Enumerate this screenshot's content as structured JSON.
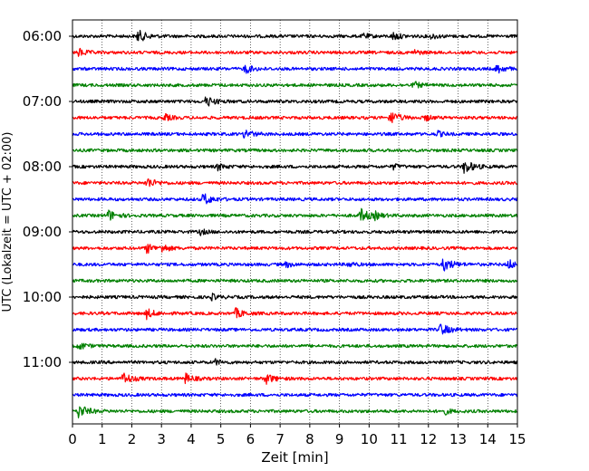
{
  "chart_data": {
    "type": "line",
    "title": "",
    "xlabel": "Zeit  [min]",
    "ylabel": "UTC (Lokalzeit = UTC + 02:00)",
    "xlim": [
      0,
      15
    ],
    "x_ticks": [
      "0",
      "1",
      "2",
      "3",
      "4",
      "5",
      "6",
      "7",
      "8",
      "9",
      "10",
      "11",
      "12",
      "13",
      "14",
      "15"
    ],
    "y_ticks": [
      "06:00",
      "07:00",
      "08:00",
      "09:00",
      "10:00",
      "11:00"
    ],
    "y_tick_trace_index": [
      0,
      4,
      8,
      12,
      16,
      20
    ],
    "trace_interval_minutes": 15,
    "grid": "vertical dotted",
    "colors": [
      "#000000",
      "#ff0000",
      "#0000ff",
      "#008000"
    ],
    "traces": [
      {
        "start": "06:00",
        "color": "#000000",
        "bursts": [
          [
            2.2,
            0.9
          ],
          [
            9.8,
            0.4
          ],
          [
            10.8,
            0.6
          ],
          [
            12.1,
            0.4
          ]
        ]
      },
      {
        "start": "06:15",
        "color": "#ff0000",
        "bursts": [
          [
            0.2,
            0.6
          ],
          [
            11.5,
            0.4
          ]
        ]
      },
      {
        "start": "06:30",
        "color": "#0000ff",
        "bursts": [
          [
            5.8,
            0.7
          ],
          [
            14.3,
            0.7
          ]
        ]
      },
      {
        "start": "06:45",
        "color": "#008000",
        "bursts": [
          [
            11.5,
            0.5
          ]
        ]
      },
      {
        "start": "07:00",
        "color": "#000000",
        "bursts": [
          [
            4.5,
            0.8
          ]
        ]
      },
      {
        "start": "07:15",
        "color": "#ff0000",
        "bursts": [
          [
            3.1,
            0.5
          ],
          [
            10.7,
            1.0
          ],
          [
            11.9,
            0.4
          ]
        ]
      },
      {
        "start": "07:30",
        "color": "#0000ff",
        "bursts": [
          [
            5.8,
            0.7
          ],
          [
            12.3,
            0.4
          ]
        ]
      },
      {
        "start": "07:45",
        "color": "#008000",
        "bursts": []
      },
      {
        "start": "08:00",
        "color": "#000000",
        "bursts": [
          [
            4.9,
            0.5
          ],
          [
            10.8,
            0.4
          ],
          [
            13.2,
            1.0
          ]
        ]
      },
      {
        "start": "08:15",
        "color": "#ff0000",
        "bursts": [
          [
            2.5,
            0.8
          ]
        ]
      },
      {
        "start": "08:30",
        "color": "#0000ff",
        "bursts": [
          [
            4.4,
            0.9
          ]
        ]
      },
      {
        "start": "08:45",
        "color": "#008000",
        "bursts": [
          [
            1.2,
            0.8
          ],
          [
            9.7,
            1.0
          ],
          [
            10.2,
            0.4
          ]
        ]
      },
      {
        "start": "09:00",
        "color": "#000000",
        "bursts": [
          [
            4.3,
            0.4
          ]
        ]
      },
      {
        "start": "09:15",
        "color": "#ff0000",
        "bursts": [
          [
            2.5,
            0.7
          ],
          [
            3.0,
            0.6
          ]
        ]
      },
      {
        "start": "09:30",
        "color": "#0000ff",
        "bursts": [
          [
            7.2,
            0.4
          ],
          [
            9.3,
            0.4
          ],
          [
            12.5,
            1.0
          ],
          [
            14.7,
            0.7
          ]
        ]
      },
      {
        "start": "09:45",
        "color": "#008000",
        "bursts": []
      },
      {
        "start": "10:00",
        "color": "#000000",
        "bursts": [
          [
            4.7,
            0.4
          ]
        ]
      },
      {
        "start": "10:15",
        "color": "#ff0000",
        "bursts": [
          [
            2.5,
            0.7
          ],
          [
            5.5,
            0.7
          ]
        ]
      },
      {
        "start": "10:30",
        "color": "#0000ff",
        "bursts": [
          [
            12.4,
            0.9
          ]
        ]
      },
      {
        "start": "10:45",
        "color": "#008000",
        "bursts": [
          [
            0.2,
            0.6
          ]
        ]
      },
      {
        "start": "11:00",
        "color": "#000000",
        "bursts": [
          [
            4.8,
            0.4
          ]
        ]
      },
      {
        "start": "11:15",
        "color": "#ff0000",
        "bursts": [
          [
            1.7,
            0.9
          ],
          [
            3.8,
            0.7
          ],
          [
            6.5,
            0.8
          ]
        ]
      },
      {
        "start": "11:30",
        "color": "#0000ff",
        "bursts": []
      },
      {
        "start": "11:45",
        "color": "#008000",
        "bursts": [
          [
            0.2,
            1.0
          ],
          [
            12.5,
            0.5
          ]
        ]
      }
    ]
  }
}
